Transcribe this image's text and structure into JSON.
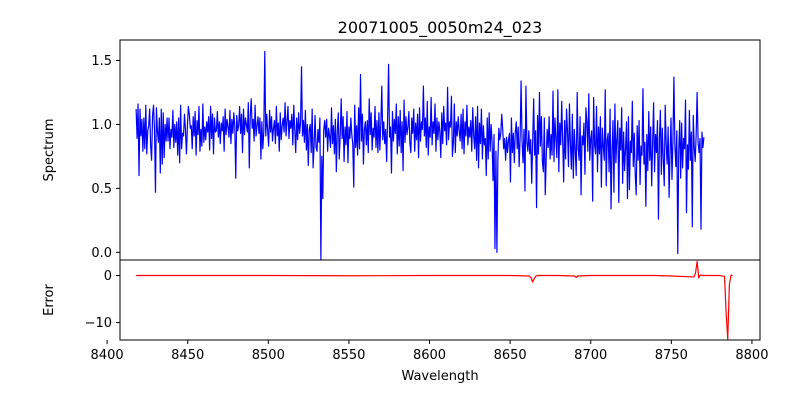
{
  "chart_data": [
    {
      "type": "line",
      "title": "20071005_0050m24_023",
      "xlabel": "",
      "ylabel": "Spectrum",
      "xlim": [
        8408,
        8805
      ],
      "ylim": [
        -0.06,
        1.66
      ],
      "yticks": [
        "0.0",
        "0.5",
        "1.0",
        "1.5"
      ],
      "yticks_values": [
        0.0,
        0.5,
        1.0,
        1.5
      ],
      "grid": false,
      "series": [
        {
          "color": "#0000ff",
          "x_start": 8418,
          "x_step": 0.6,
          "values": [
            1.12,
            0.89,
            1.16,
            0.6,
            1.12,
            0.91,
            1.04,
            0.79,
            1.05,
            0.81,
            1.15,
            0.77,
            0.95,
            0.99,
            1.12,
            0.83,
            0.72,
            1.07,
            1.15,
            0.96,
            0.47,
            1.13,
            0.95,
            0.86,
            1.05,
            0.62,
            1.12,
            0.69,
            1.09,
            0.74,
            1.0,
            0.87,
            1.05,
            0.87,
            1.05,
            0.81,
            0.96,
            0.9,
            1.11,
            0.82,
            1.0,
            0.86,
            1.02,
            0.76,
            1.05,
            0.7,
            1.15,
            0.81,
            0.93,
            0.91,
            1.08,
            0.96,
            0.77,
            0.98,
            1.14,
            1.08,
            0.97,
            0.99,
            0.81,
            1.06,
            0.91,
            1.1,
            0.76,
            1.03,
            0.92,
            1.14,
            0.79,
            0.96,
            0.83,
            1.16,
            0.86,
            0.98,
            0.88,
            1.02,
            0.94,
            1.06,
            0.8,
            1.14,
            0.89,
            1.08,
            0.77,
            1.05,
            0.94,
            0.95,
            1.1,
            0.9,
            1.02,
            0.85,
            1.01,
            0.95,
            1.06,
            0.79,
            1.12,
            0.92,
            1.04,
            0.98,
            0.9,
            1.11,
            0.85,
            1.04,
            0.93,
            1.09,
            0.99,
            0.58,
            1.07,
            0.95,
            0.99,
            1.14,
            0.93,
            1.08,
            0.78,
            1.12,
            0.92,
            1.05,
            1.0,
            0.94,
            1.17,
            0.66,
            1.07,
            1.2,
            0.97,
            1.04,
            0.87,
            1.15,
            0.91,
            0.99,
            1.06,
            0.93,
            1.05,
            0.73,
            1.02,
            0.81,
            0.95,
            1.57,
            0.91,
            1.08,
            0.95,
            0.83,
            1.11,
            0.94,
            1.06,
            0.87,
            0.97,
            1.03,
            0.85,
            1.14,
            0.91,
            1.01,
            0.79,
            1.09,
            0.88,
            0.99,
            1.05,
            0.94,
            1.17,
            0.91,
            1.02,
            1.14,
            0.89,
            1.03,
            0.97,
            1.08,
            0.84,
            1.15,
            0.96,
            0.78,
            1.05,
            0.88,
            1.09,
            0.93,
            1.01,
            1.45,
            0.91,
            1.03,
            0.86,
            1.11,
            0.8,
            1.0,
            0.68,
            0.96,
            1.0,
            0.78,
            1.12,
            0.66,
            0.84,
            1.07,
            0.82,
            0.79,
            0.96,
            0.86,
            1.05,
            -0.06,
            0.75,
            0.42,
            0.96,
            1.03,
            0.9,
            1.04,
            0.79,
            0.97,
            0.91,
            0.82,
            1.13,
            0.85,
            0.99,
            0.77,
            1.04,
            0.63,
            0.95,
            1.09,
            0.73,
            0.91,
            1.2,
            0.89,
            1.06,
            0.71,
            0.98,
            0.84,
            1.1,
            0.7,
            0.98,
            0.89,
            1.05,
            0.92,
            0.84,
            0.51,
            1.15,
            0.82,
            0.99,
            0.76,
            1.13,
            0.81,
            1.39,
            0.87,
            1.08,
            0.69,
            0.96,
            1.02,
            0.84,
            1.03,
            0.78,
            1.2,
            0.92,
            1.09,
            0.8,
            0.97,
            0.9,
            1.14,
            0.82,
            1.03,
            0.78,
            1.09,
            0.8,
            1.01,
            1.3,
            0.88,
            1.02,
            0.85,
            0.96,
            0.71,
            1.05,
            1.47,
            0.9,
            0.98,
            0.62,
            1.1,
            0.87,
            1.04,
            0.93,
            1.16,
            0.77,
            1.06,
            0.83,
            1.11,
            0.78,
            1.02,
            0.64,
            1.19,
            0.86,
            1.06,
            0.92,
            0.98,
            1.1,
            0.86,
            0.78,
            1.05,
            0.93,
            1.12,
            0.79,
            1.01,
            0.88,
            1.08,
            0.74,
            1.13,
            0.87,
            1.02,
            0.96,
            1.3,
            0.91,
            1.05,
            0.82,
            1.18,
            0.76,
            0.98,
            0.9,
            1.21,
            0.84,
            1.02,
            0.93,
            1.16,
            0.79,
            1.05,
            0.88,
            1.02,
            0.94,
            0.74,
            1.09,
            0.85,
            1.14,
            0.95,
            1.01,
            0.84,
            1.29,
            0.88,
            1.02,
            0.98,
            1.22,
            0.75,
            0.86,
            1.16,
            0.78,
            1.02,
            0.91,
            1.06,
            0.95,
            0.87,
            1.08,
            0.81,
            1.12,
            0.77,
            1.02,
            0.91,
            1.15,
            0.84,
            0.98,
            0.9,
            1.03,
            0.79,
            1.13,
            0.91,
            0.81,
            1.06,
            0.72,
            1.14,
            0.66,
            1.01,
            0.85,
            1.12,
            0.73,
            0.99,
            0.84,
            0.89,
            0.6,
            1.05,
            0.73,
            1.09,
            0.79,
            1.0,
            0.86,
            0.56,
            0.92,
            0.03,
            0.79,
            0.0,
            0.72,
            0.97,
            0.88,
            0.93,
            1.08,
            0.96,
            0.81,
            0.89,
            0.72,
            0.9,
            0.78,
            0.88,
            0.93,
            0.55,
            1.05,
            0.78,
            0.93,
            0.7,
            0.94,
            1.02,
            0.81,
            0.98,
            0.67,
            0.9,
            1.34,
            0.87,
            0.7,
            0.96,
            0.48,
            1.3,
            0.86,
            0.79,
            0.95,
            0.77,
            0.88,
            0.54,
            0.87,
            1.2,
            0.76,
            0.95,
            0.35,
            1.07,
            0.77,
            1.25,
            0.83,
            1.06,
            0.71,
            0.63,
            1.05,
            0.45,
            0.74,
            0.96,
            0.82,
            1.06,
            0.73,
            0.92,
            0.76,
            1.26,
            0.71,
            1.05,
            0.88,
            0.74,
            1.27,
            0.63,
            1.01,
            0.84,
            1.18,
            0.88,
            0.55,
            1.03,
            0.73,
            1.12,
            0.94,
            0.67,
            1.16,
            0.85,
            0.65,
            1.08,
            0.58,
            0.96,
            0.8,
            0.6,
            1.25,
            0.81,
            0.72,
            1.06,
            0.45,
            0.91,
            0.84,
            1.01,
            0.61,
            1.13,
            1.02,
            0.79,
            1.24,
            0.72,
            0.89,
            0.95,
            0.4,
            1.21,
            0.84,
            0.77,
            1.14,
            0.63,
            0.98,
            0.77,
            1.06,
            0.51,
            0.97,
            0.83,
            0.72,
            1.27,
            0.52,
            0.88,
            0.93,
            0.63,
            1.12,
            0.34,
            0.79,
            1.03,
            0.47,
            1.16,
            0.7,
            0.88,
            1.03,
            0.39,
            0.97,
            0.8,
            1.13,
            0.54,
            0.94,
            0.64,
            0.81,
            1.02,
            0.42,
            1.06,
            0.49,
            0.87,
            0.78,
            1.18,
            0.67,
            0.93,
            0.61,
            0.45,
            0.99,
            0.72,
            1.03,
            0.53,
            0.83,
            0.76,
            1.28,
            0.69,
            0.86,
            0.36,
            0.92,
            0.64,
            1.1,
            0.72,
            0.98,
            0.52,
            0.85,
            1.17,
            0.63,
            0.92,
            0.78,
            1.03,
            0.26,
            0.88,
            1.11,
            0.61,
            0.97,
            0.73,
            0.52,
            1.15,
            0.85,
            0.69,
            0.98,
            0.43,
            0.78,
            1.05,
            0.57,
            0.88,
            1.37,
            0.84,
            0.67,
            0.95,
            -0.01,
            0.79,
            1.03,
            0.58,
            1.01,
            0.66,
            0.89,
            0.81,
            1.19,
            0.31,
            0.84,
            0.65,
            1.11,
            0.72,
            0.94,
            0.2,
            1.07,
            0.82,
            0.71,
            0.92,
            1.25,
            0.86,
            0.78,
            0.89,
            0.18,
            0.94,
            0.82,
            0.9
          ]
        }
      ]
    },
    {
      "type": "line",
      "title": "",
      "xlabel": "Wavelength",
      "ylabel": "Error",
      "xlim": [
        8408,
        8805
      ],
      "ylim": [
        -13.7,
        3.3
      ],
      "xticks": [
        "8400",
        "8450",
        "8500",
        "8550",
        "8600",
        "8650",
        "8700",
        "8750",
        "8800"
      ],
      "xticks_values": [
        8400,
        8450,
        8500,
        8550,
        8600,
        8650,
        8700,
        8750,
        8800
      ],
      "yticks": [
        "0",
        "−10"
      ],
      "yticks_values": [
        0,
        -10
      ],
      "grid": false,
      "series": [
        {
          "color": "#ff0000",
          "x": [
            8418,
            8450,
            8500,
            8550,
            8600,
            8650,
            8662,
            8663,
            8664,
            8665,
            8666,
            8667,
            8680,
            8690,
            8691,
            8692,
            8700,
            8740,
            8750,
            8764,
            8765,
            8766,
            8767,
            8768,
            8770,
            8780,
            8783,
            8784,
            8785,
            8786,
            8787,
            8788
          ],
          "values": [
            0.0,
            0.0,
            0.0,
            -0.05,
            0.0,
            0.0,
            -0.1,
            -0.5,
            -1.4,
            -0.6,
            -0.1,
            0.0,
            0.0,
            -0.1,
            -0.4,
            -0.1,
            0.0,
            0.0,
            -0.1,
            -0.3,
            0.5,
            3.0,
            -0.5,
            0.1,
            0.0,
            0.0,
            -0.2,
            -8.0,
            -13.5,
            -2.0,
            0.1,
            0.0
          ]
        }
      ]
    }
  ]
}
